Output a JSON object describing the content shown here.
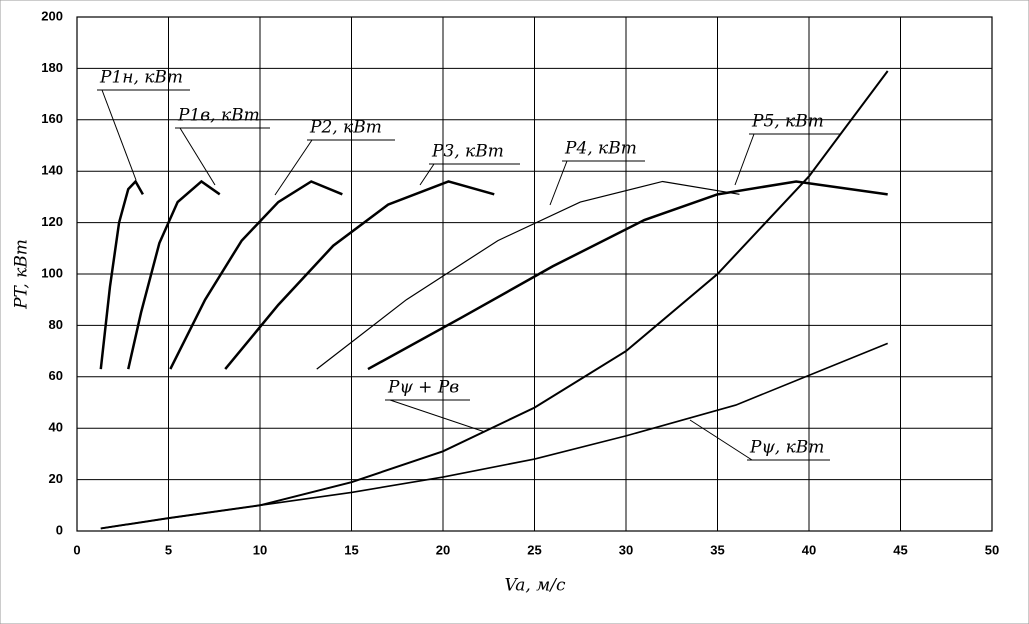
{
  "chart_data": {
    "type": "line",
    "x_label": "Va, м/с",
    "y_label": "PT, кВт",
    "xlim": [
      0,
      50
    ],
    "xticks": [
      0,
      5,
      10,
      15,
      20,
      25,
      30,
      35,
      40,
      45,
      50
    ],
    "ylim": [
      0,
      200
    ],
    "yticks": [
      0,
      20,
      40,
      60,
      80,
      100,
      120,
      140,
      160,
      180,
      200
    ],
    "grid": true,
    "series": [
      {
        "name": "P1н, кВт",
        "color": "#000000",
        "linewidth": 2.5,
        "x": [
          1.3,
          1.8,
          2.3,
          2.8,
          3.2,
          3.6
        ],
        "values": [
          63,
          95,
          120,
          133,
          136,
          131
        ]
      },
      {
        "name": "P1в, кВт",
        "color": "#000000",
        "linewidth": 2.5,
        "x": [
          2.8,
          3.5,
          4.5,
          5.5,
          6.8,
          7.8
        ],
        "values": [
          63,
          85,
          112,
          128,
          136,
          131
        ]
      },
      {
        "name": "P2, кВт",
        "color": "#000000",
        "linewidth": 2.5,
        "x": [
          5.1,
          7,
          9,
          11,
          12.8,
          14.5
        ],
        "values": [
          63,
          90,
          113,
          128,
          136,
          131
        ]
      },
      {
        "name": "P3, кВт",
        "color": "#000000",
        "linewidth": 2.5,
        "x": [
          8.1,
          11,
          14,
          17,
          20.3,
          22.8
        ],
        "values": [
          63,
          88,
          111,
          127,
          136,
          131
        ]
      },
      {
        "name": "P4, кВт",
        "color": "#000000",
        "linewidth": 1.2,
        "x": [
          13.1,
          18,
          23,
          27.5,
          32,
          36.2
        ],
        "values": [
          63,
          90,
          113,
          128,
          136,
          131
        ]
      },
      {
        "name": "P5, кВт",
        "color": "#000000",
        "linewidth": 2.5,
        "x": [
          15.9,
          21,
          26,
          31,
          35,
          39.3,
          44.3
        ],
        "values": [
          63,
          83,
          103,
          121,
          131,
          136,
          131
        ]
      },
      {
        "name": "Pψ + Pв",
        "color": "#000000",
        "linewidth": 2,
        "x": [
          1.3,
          5,
          10,
          15,
          20,
          25,
          30,
          35,
          40,
          44.3
        ],
        "values": [
          1,
          5,
          10,
          19,
          31,
          48,
          70,
          100,
          138,
          179
        ]
      },
      {
        "name": "Pψ, кВт",
        "color": "#000000",
        "linewidth": 1.6,
        "x": [
          1.3,
          5,
          10,
          15,
          20,
          25,
          30,
          36,
          44.3
        ],
        "values": [
          1,
          5,
          10,
          15,
          21,
          28,
          37,
          49,
          73
        ]
      }
    ]
  }
}
